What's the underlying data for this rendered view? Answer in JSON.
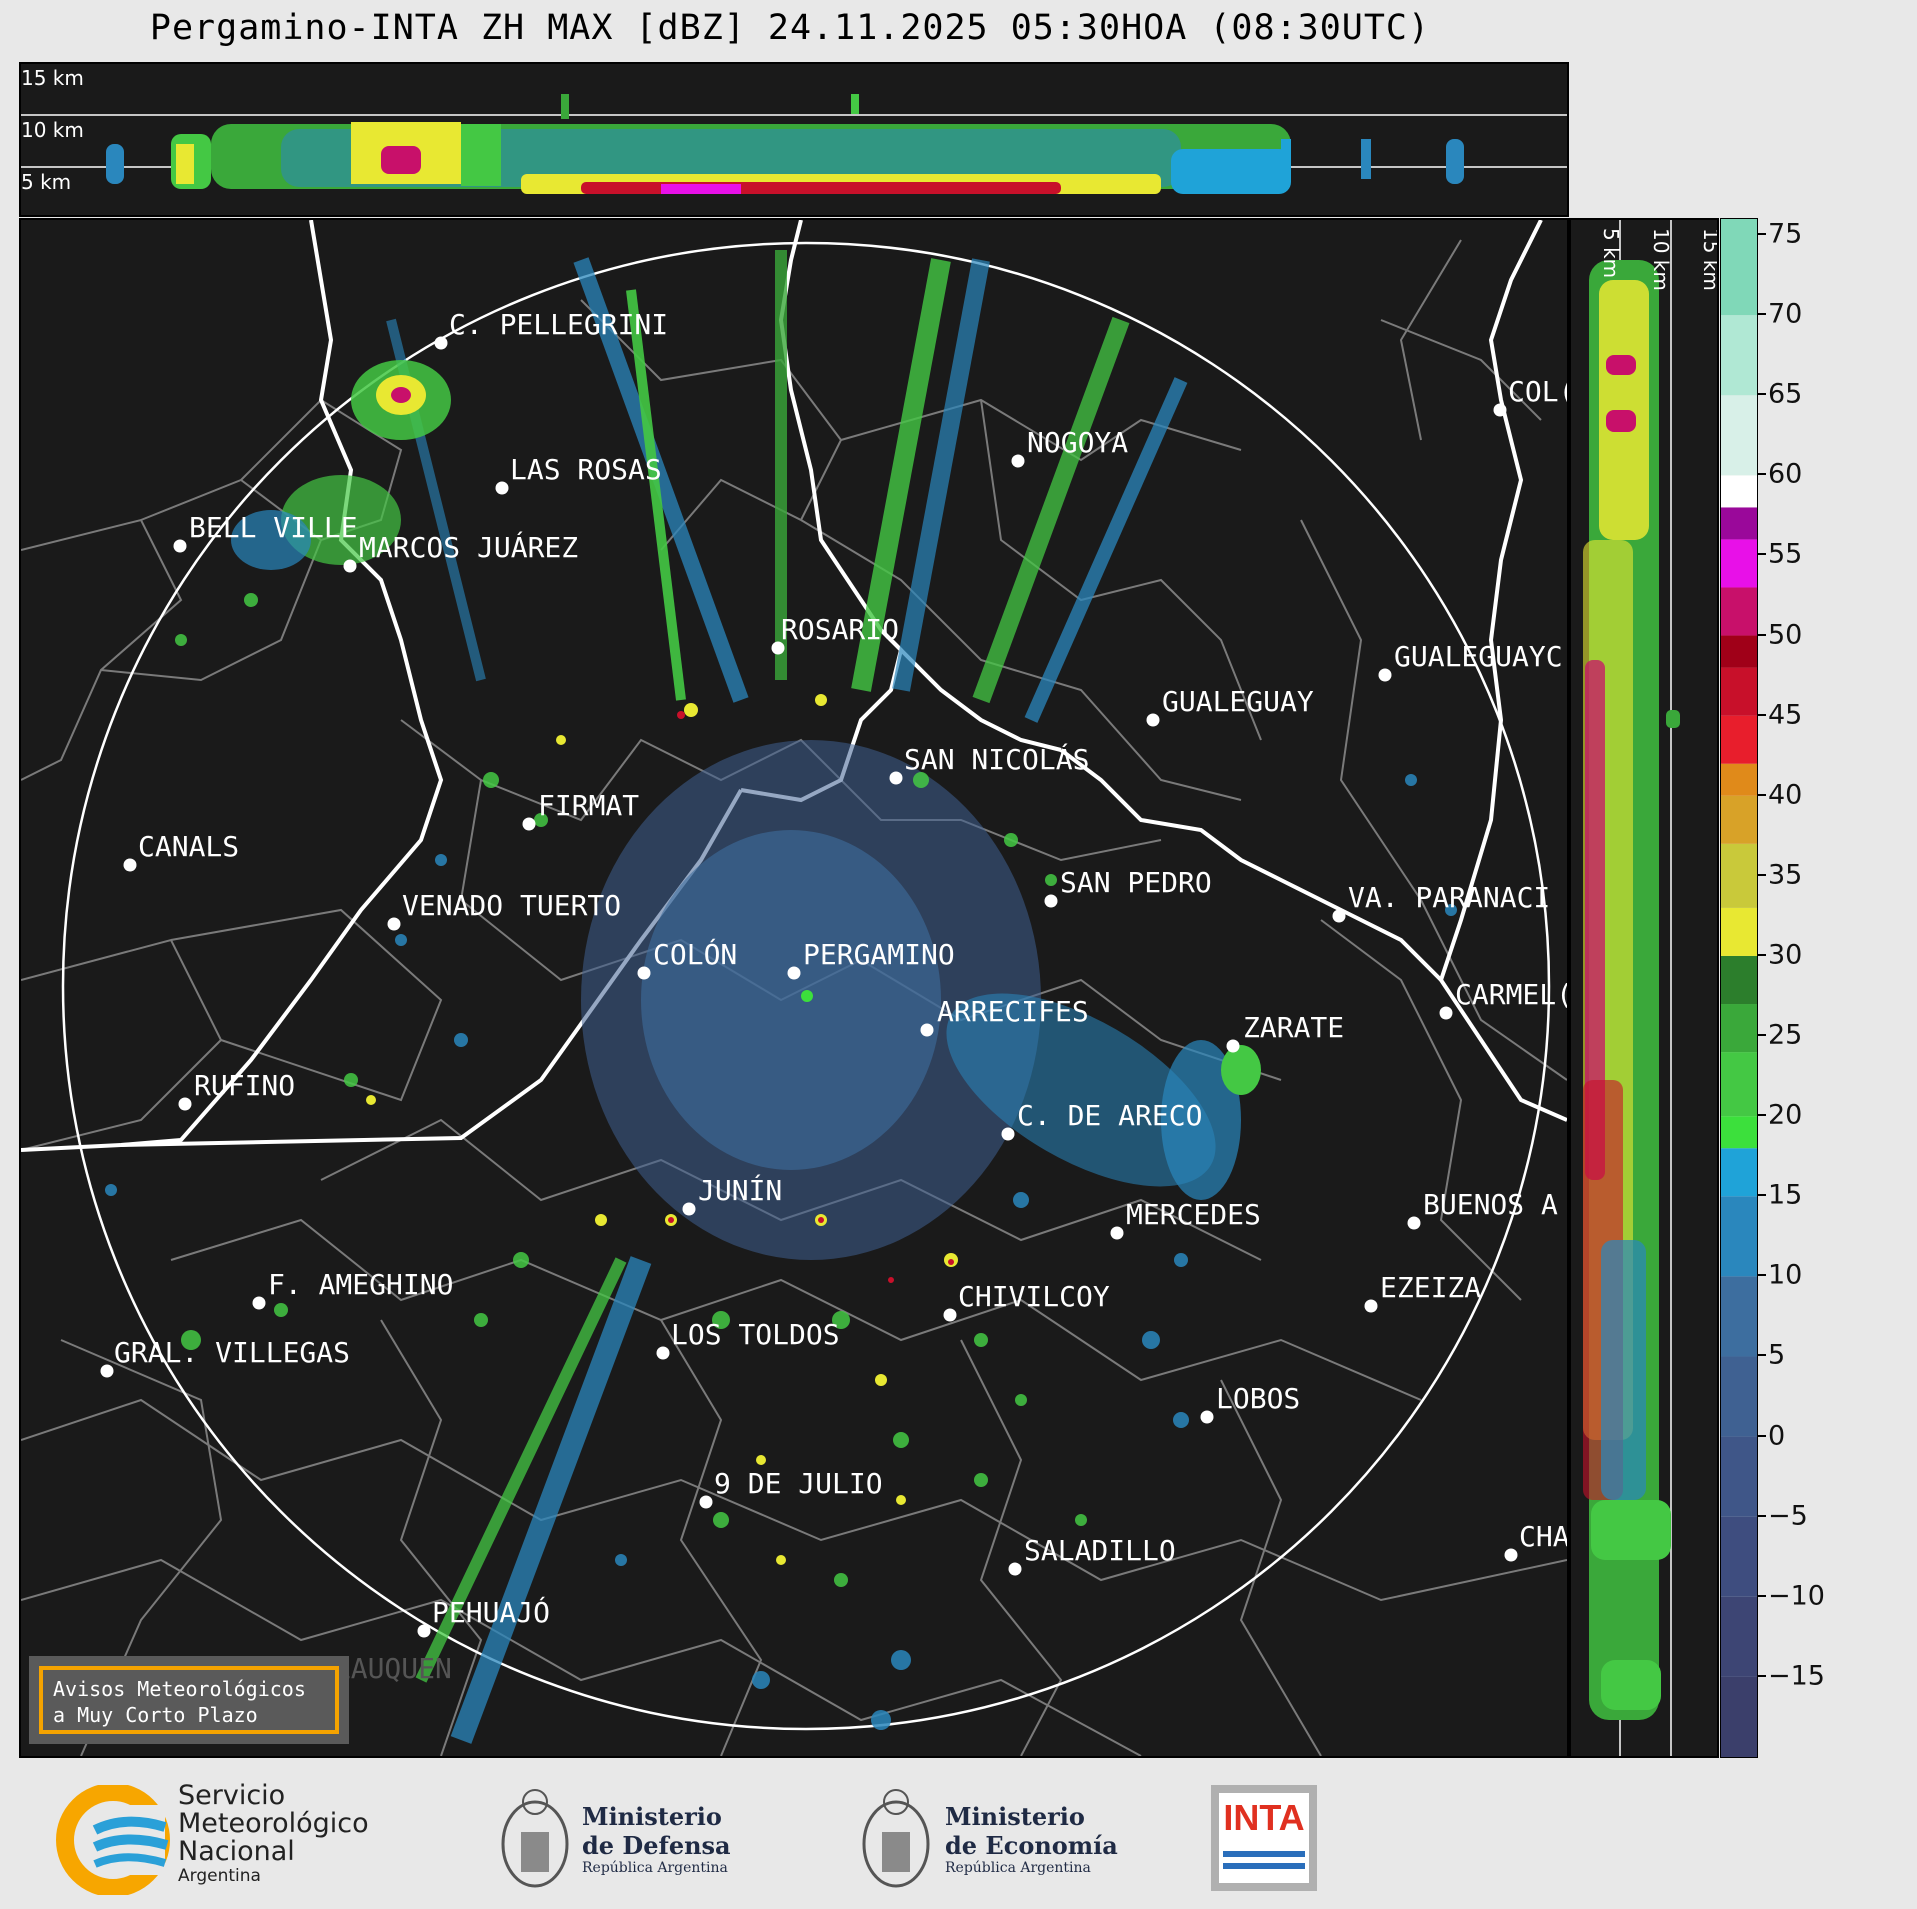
{
  "title": "Pergamino-INTA ZH MAX [dBZ] 24.11.2025 05:30HOA (08:30UTC)",
  "top_panel": {
    "height_labels": [
      "15 km",
      "10 km",
      "5 km"
    ]
  },
  "side_panel": {
    "height_labels": [
      "5 km",
      "10 km",
      "15 km"
    ]
  },
  "colorbar": {
    "unit": "dBZ",
    "ticks": [
      "75",
      "70",
      "65",
      "60",
      "55",
      "50",
      "45",
      "40",
      "35",
      "30",
      "25",
      "20",
      "15",
      "10",
      "5",
      "0",
      "−5",
      "−10",
      "−15"
    ],
    "tick_values": [
      75,
      70,
      65,
      60,
      55,
      50,
      45,
      40,
      35,
      30,
      25,
      20,
      15,
      10,
      5,
      0,
      -5,
      -10,
      -15
    ],
    "range": [
      -20,
      76
    ],
    "colors": [
      {
        "from": -20,
        "to": -15,
        "color": "#3b3f6b"
      },
      {
        "from": -15,
        "to": -10,
        "color": "#3d4574"
      },
      {
        "from": -10,
        "to": -5,
        "color": "#3e4d7f"
      },
      {
        "from": -5,
        "to": 0,
        "color": "#3f5688"
      },
      {
        "from": 0,
        "to": 5,
        "color": "#3f6192"
      },
      {
        "from": 5,
        "to": 10,
        "color": "#3d6e9f"
      },
      {
        "from": 10,
        "to": 15,
        "color": "#2a87bd"
      },
      {
        "from": 15,
        "to": 18,
        "color": "#1fa3d8"
      },
      {
        "from": 18,
        "to": 20,
        "color": "#3ce03c"
      },
      {
        "from": 20,
        "to": 24,
        "color": "#44c844"
      },
      {
        "from": 24,
        "to": 27,
        "color": "#3aa83a"
      },
      {
        "from": 27,
        "to": 30,
        "color": "#2c7e2c"
      },
      {
        "from": 30,
        "to": 33,
        "color": "#e8e832"
      },
      {
        "from": 33,
        "to": 37,
        "color": "#c9c93a"
      },
      {
        "from": 37,
        "to": 40,
        "color": "#d8a228"
      },
      {
        "from": 40,
        "to": 42,
        "color": "#e08a1a"
      },
      {
        "from": 42,
        "to": 45,
        "color": "#e81e2c"
      },
      {
        "from": 45,
        "to": 48,
        "color": "#c8102a"
      },
      {
        "from": 48,
        "to": 50,
        "color": "#a00018"
      },
      {
        "from": 50,
        "to": 53,
        "color": "#c8106a"
      },
      {
        "from": 53,
        "to": 56,
        "color": "#e810e8"
      },
      {
        "from": 56,
        "to": 58,
        "color": "#9a089a"
      },
      {
        "from": 58,
        "to": 60,
        "color": "#ffffff"
      },
      {
        "from": 60,
        "to": 65,
        "color": "#d8f0e8"
      },
      {
        "from": 65,
        "to": 70,
        "color": "#b0e8d4"
      },
      {
        "from": 70,
        "to": 76,
        "color": "#80d8b8"
      }
    ]
  },
  "cities": [
    {
      "name": "C. PELLEGRINI"
    },
    {
      "name": "LAS ROSAS"
    },
    {
      "name": "BELL VILLE"
    },
    {
      "name": "MARCOS JUÁREZ"
    },
    {
      "name": "NOGOYA"
    },
    {
      "name": "ROSARIO"
    },
    {
      "name": "GUALEGUAY"
    },
    {
      "name": "GUALEGUAYC"
    },
    {
      "name": "SAN NICOLÁS"
    },
    {
      "name": "FIRMAT"
    },
    {
      "name": "CANALS"
    },
    {
      "name": "VENADO TUERTO"
    },
    {
      "name": "SAN PEDRO"
    },
    {
      "name": "VA. PARANACI"
    },
    {
      "name": "COLÓN"
    },
    {
      "name": "PERGAMINO"
    },
    {
      "name": "ARRECIFES"
    },
    {
      "name": "ZARATE"
    },
    {
      "name": "CARMEL("
    },
    {
      "name": "RUFINO"
    },
    {
      "name": "C. DE ARECO"
    },
    {
      "name": "JUNÍN"
    },
    {
      "name": "MERCEDES"
    },
    {
      "name": "BUENOS A"
    },
    {
      "name": "F. AMEGHINO"
    },
    {
      "name": "CHIVILCOY"
    },
    {
      "name": "EZEIZA"
    },
    {
      "name": "GRAL. VILLEGAS"
    },
    {
      "name": "LOS TOLDOS"
    },
    {
      "name": "LOBOS"
    },
    {
      "name": "9 DE JULIO"
    },
    {
      "name": "SALADILLO"
    },
    {
      "name": "CHA"
    },
    {
      "name": "PEHUAJÓ"
    },
    {
      "name": "TRENQUE LAUQUEN"
    },
    {
      "name": "COL("
    }
  ],
  "notice": {
    "line1": "Avisos Meteorológicos",
    "line2": "a Muy Corto Plazo"
  },
  "logos": {
    "smn": {
      "line1": "Servicio",
      "line2": "Meteorológico",
      "line3": "Nacional",
      "line4": "Argentina"
    },
    "defensa": {
      "line1": "Ministerio",
      "line2": "de Defensa",
      "line3": "República Argentina"
    },
    "economia": {
      "line1": "Ministerio",
      "line2": "de Economía",
      "line3": "República Argentina"
    },
    "inta": {
      "text": "INTA"
    }
  }
}
